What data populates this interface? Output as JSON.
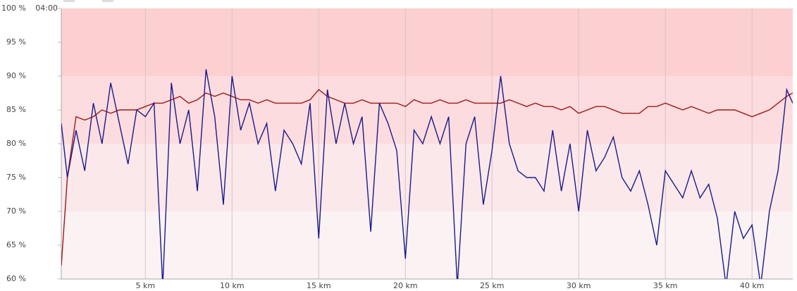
{
  "chart_data": {
    "type": "line",
    "corner_label": "04:00",
    "x": [
      0.15,
      0.5,
      1,
      1.5,
      2,
      2.5,
      3,
      3.5,
      4,
      4.5,
      5,
      5.5,
      6,
      6.5,
      7,
      7.5,
      8,
      8.5,
      9,
      9.5,
      10,
      10.5,
      11,
      11.5,
      12,
      12.5,
      13,
      13.5,
      14,
      14.5,
      15,
      15.5,
      16,
      16.5,
      17,
      17.5,
      18,
      18.5,
      19,
      19.5,
      20,
      20.5,
      21,
      21.5,
      22,
      22.5,
      23,
      23.5,
      24,
      24.5,
      25,
      25.5,
      26,
      26.5,
      27,
      27.5,
      28,
      28.5,
      29,
      29.5,
      30,
      30.5,
      31,
      31.5,
      32,
      32.5,
      33,
      33.5,
      34,
      34.5,
      35,
      35.5,
      36,
      36.5,
      37,
      37.5,
      38,
      38.5,
      39,
      39.5,
      40,
      40.5,
      41,
      41.5,
      42,
      42.35
    ],
    "series": [
      {
        "color": "#a01818",
        "values": [
          62,
          75,
          84,
          83.5,
          84,
          85,
          84.5,
          85,
          85,
          85,
          85.5,
          86,
          86,
          86.5,
          87,
          86,
          86.5,
          87.5,
          87,
          87.5,
          87,
          86.5,
          86.5,
          86,
          86.5,
          86,
          86,
          86,
          86,
          86.5,
          88,
          87,
          86.5,
          86,
          86,
          86.5,
          86,
          86,
          86,
          86,
          85.5,
          86.5,
          86,
          86,
          86.5,
          86,
          86,
          86.5,
          86,
          86,
          86,
          86,
          86.5,
          86,
          85.5,
          86,
          85.5,
          85.5,
          85,
          85.5,
          84.5,
          85,
          85.5,
          85.5,
          85,
          84.5,
          84.5,
          84.5,
          85.5,
          85.5,
          86,
          85.5,
          85,
          85.5,
          85,
          84.5,
          85,
          85,
          85,
          84.5,
          84,
          84.5,
          85,
          86,
          87,
          87.5
        ]
      },
      {
        "color": "#1a1a8c",
        "values": [
          83,
          75,
          82,
          76,
          86,
          80,
          89,
          83,
          77,
          85,
          84,
          86,
          59,
          89,
          80,
          85,
          73,
          91,
          84,
          71,
          90,
          82,
          86,
          80,
          83,
          73,
          82,
          80,
          77,
          86,
          66,
          88,
          80,
          86,
          80,
          84,
          67,
          86,
          83,
          79,
          63,
          82,
          80,
          84,
          80,
          84,
          59,
          80,
          84,
          71,
          79,
          90,
          80,
          76,
          75,
          75,
          73,
          82,
          73,
          80,
          70,
          82,
          76,
          78,
          81,
          75,
          73,
          76,
          71,
          65,
          76,
          74,
          72,
          76,
          72,
          74,
          69,
          59,
          70,
          66,
          68,
          59,
          70,
          76,
          88,
          86
        ]
      }
    ],
    "xlim": [
      0.15,
      42.35
    ],
    "ylim": [
      60,
      100
    ],
    "xticks": [
      {
        "value": 5,
        "label": "5 km"
      },
      {
        "value": 10,
        "label": "10 km"
      },
      {
        "value": 15,
        "label": "15 km"
      },
      {
        "value": 20,
        "label": "20 km"
      },
      {
        "value": 25,
        "label": "25 km"
      },
      {
        "value": 30,
        "label": "30 km"
      },
      {
        "value": 35,
        "label": "35 km"
      },
      {
        "value": 40,
        "label": "40 km"
      }
    ],
    "yticks": [
      {
        "value": 60,
        "label": "60 %"
      },
      {
        "value": 65,
        "label": "65 %"
      },
      {
        "value": 70,
        "label": "70 %"
      },
      {
        "value": 75,
        "label": "75 %"
      },
      {
        "value": 80,
        "label": "80 %"
      },
      {
        "value": 85,
        "label": "85 %"
      },
      {
        "value": 90,
        "label": "90 %"
      },
      {
        "value": 95,
        "label": "95 %"
      },
      {
        "value": 100,
        "label": "100 %"
      }
    ],
    "bands": [
      {
        "from": 90,
        "to": 100,
        "color": "#fccfd1"
      },
      {
        "from": 80,
        "to": 90,
        "color": "#fcdcde"
      },
      {
        "from": 70,
        "to": 80,
        "color": "#fbe8ea"
      },
      {
        "from": 60,
        "to": 70,
        "color": "#fbf2f3"
      }
    ],
    "grid": true
  }
}
